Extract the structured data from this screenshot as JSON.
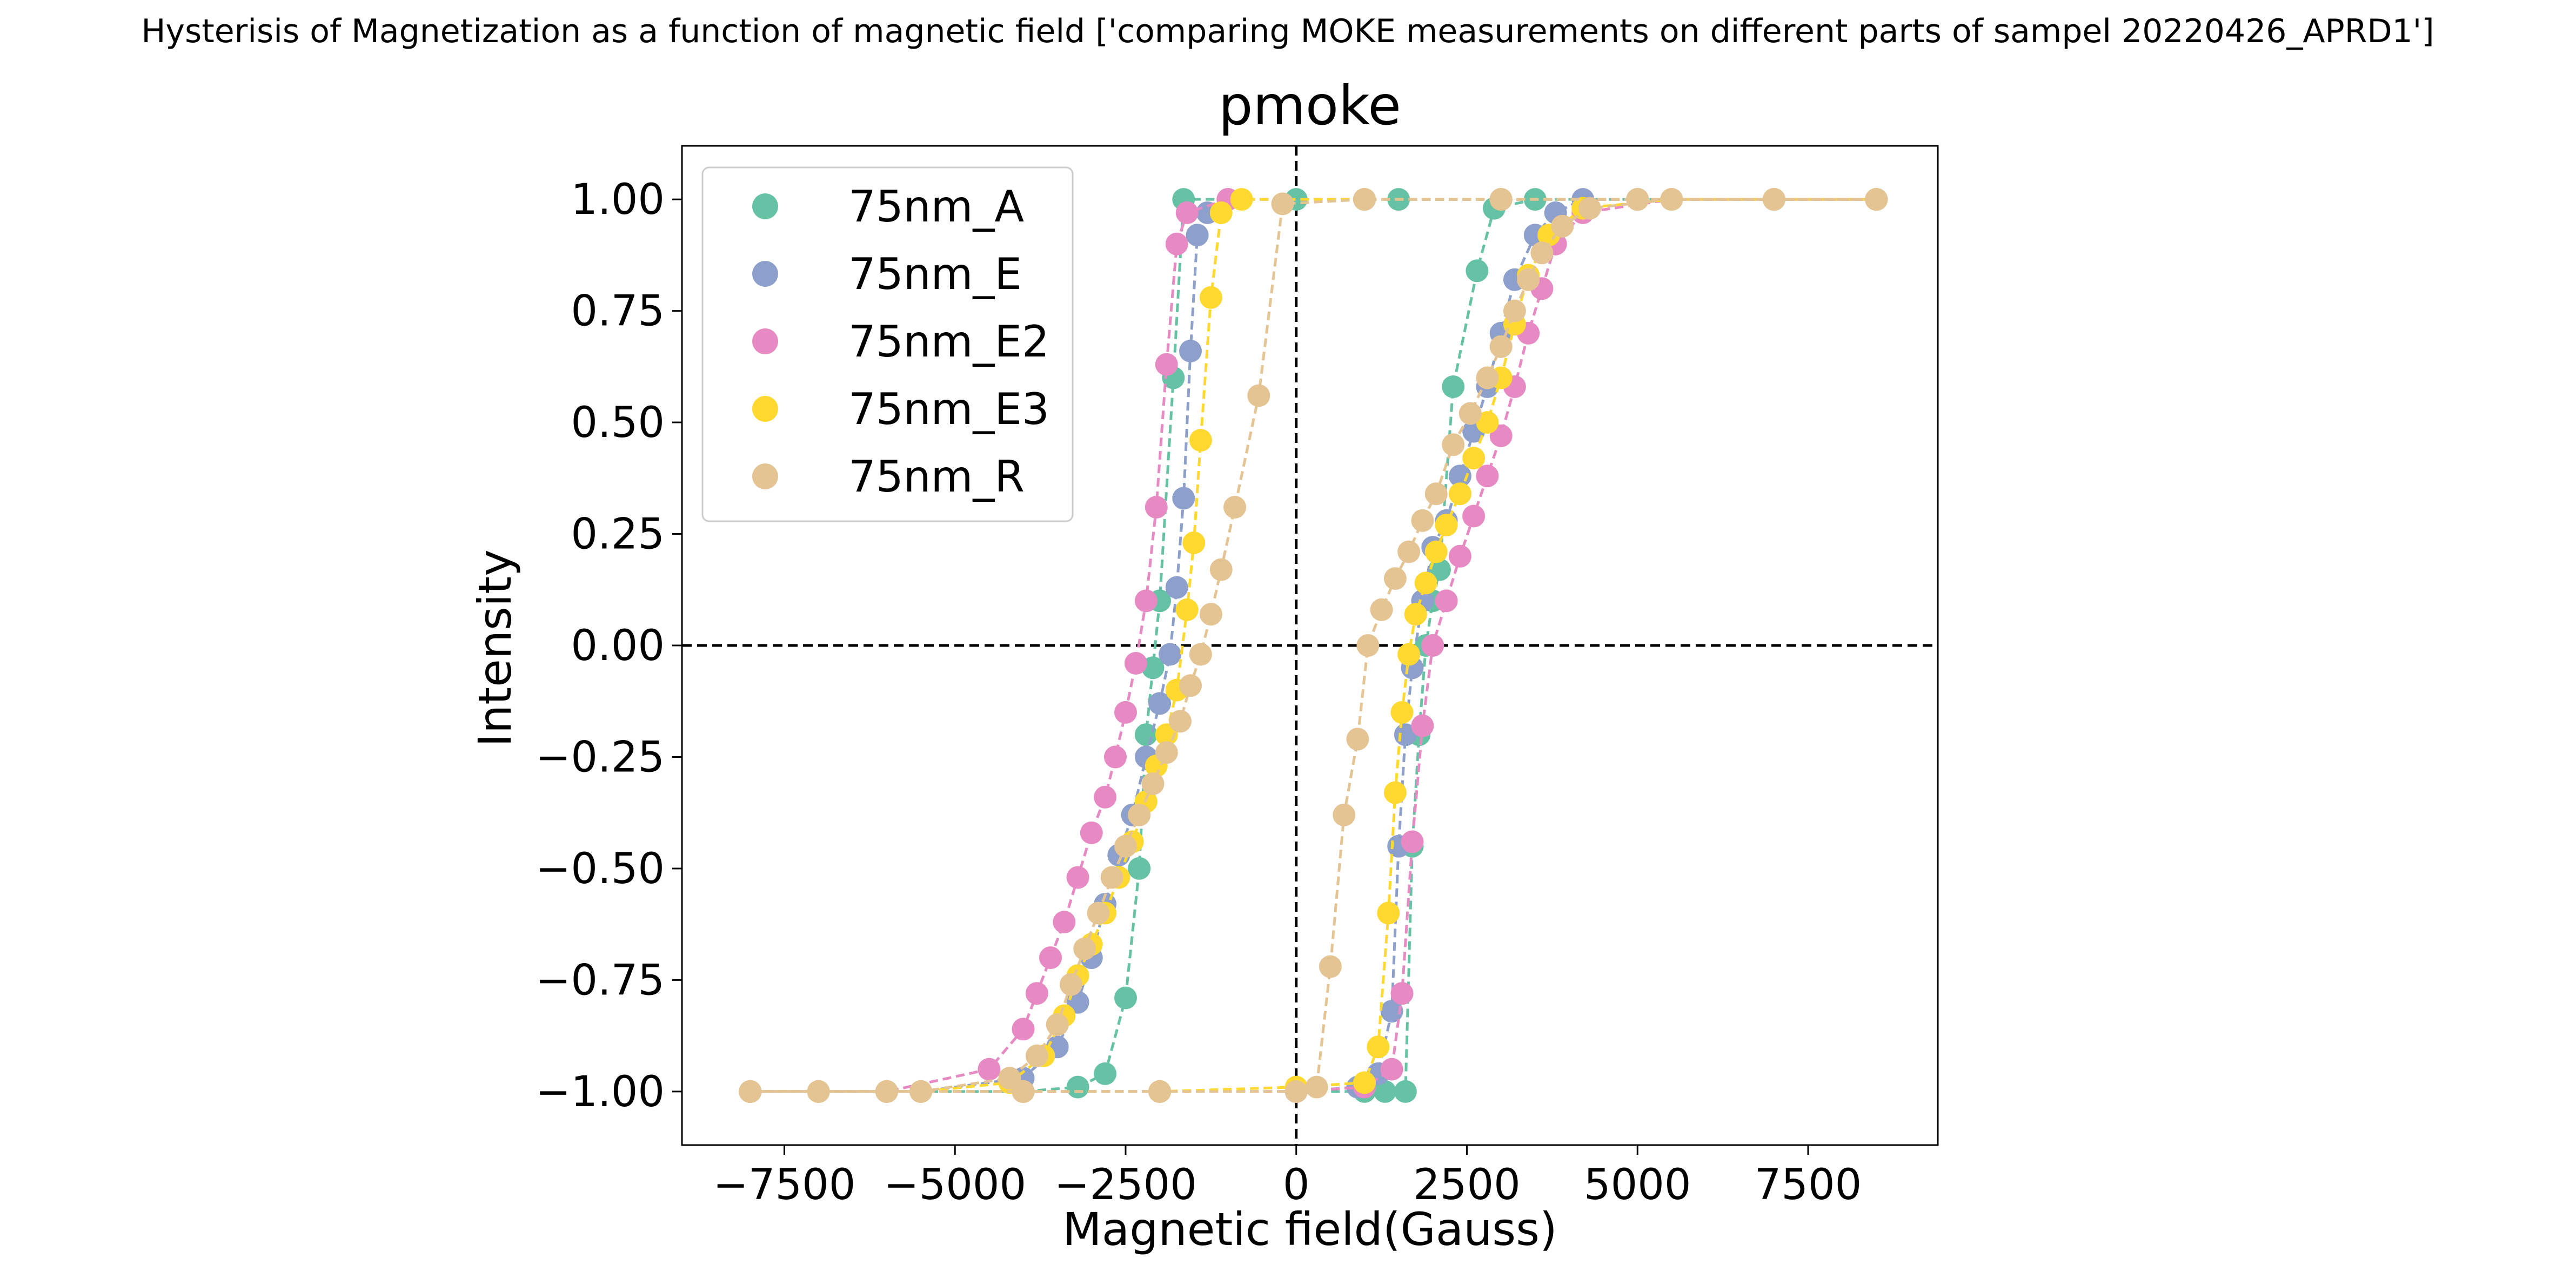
{
  "figure": {
    "suptitle": "Hysterisis of Magnetization as a function of magnetic field ['comparing MOKE measurements on different parts of sampel 20220426_APRD1']"
  },
  "chart_data": {
    "type": "scatter",
    "title": "pmoke",
    "xlabel": "Magnetic field(Gauss)",
    "ylabel": "Intensity",
    "xlim": [
      -9000,
      9400
    ],
    "ylim": [
      -1.12,
      1.12
    ],
    "xticks": [
      -7500,
      -5000,
      -2500,
      0,
      2500,
      5000,
      7500
    ],
    "xtick_labels": [
      "−7500",
      "−5000",
      "−2500",
      "0",
      "2500",
      "5000",
      "7500"
    ],
    "yticks": [
      1.0,
      0.75,
      0.5,
      0.25,
      0.0,
      -0.25,
      -0.5,
      -0.75,
      -1.0
    ],
    "ytick_labels": [
      "1.00",
      "0.75",
      "0.50",
      "0.25",
      "0.00",
      "−0.25",
      "−0.50",
      "−0.75",
      "−1.00"
    ],
    "reference_lines": {
      "x": 0,
      "y": 0,
      "style": "dashed"
    },
    "grid": false,
    "legend_position": "top-left",
    "marker": "circle",
    "line_style": "dashed",
    "series": [
      {
        "name": "75nm_A",
        "color": "#66c2a5",
        "descending": {
          "x": [
            8500,
            7000,
            5000,
            3000,
            1500,
            0,
            -1000,
            -1650,
            -1800,
            -2000,
            -2100,
            -2200,
            -2300,
            -2500,
            -2800,
            -3200,
            -4000,
            -5500,
            -7000,
            -8000
          ],
          "y": [
            1.0,
            1.0,
            1.0,
            1.0,
            1.0,
            1.0,
            1.0,
            1.0,
            0.6,
            0.1,
            -0.05,
            -0.2,
            -0.5,
            -0.79,
            -0.96,
            -0.99,
            -1.0,
            -1.0,
            -1.0,
            -1.0
          ]
        },
        "ascending": {
          "x": [
            -8000,
            -6000,
            -4000,
            -2000,
            0,
            1000,
            1300,
            1600,
            1700,
            1800,
            1900,
            2000,
            2100,
            2300,
            2650,
            2900,
            3500,
            5000,
            7000,
            8500
          ],
          "y": [
            -1.0,
            -1.0,
            -1.0,
            -1.0,
            -1.0,
            -1.0,
            -1.0,
            -1.0,
            -0.45,
            -0.2,
            0.0,
            0.1,
            0.17,
            0.58,
            0.84,
            0.98,
            1.0,
            1.0,
            1.0,
            1.0
          ]
        }
      },
      {
        "name": "75nm_E",
        "color": "#8da0cb",
        "descending": {
          "x": [
            8500,
            7000,
            5000,
            3000,
            1000,
            -1000,
            -1300,
            -1450,
            -1550,
            -1650,
            -1750,
            -1850,
            -2000,
            -2200,
            -2400,
            -2600,
            -2800,
            -3000,
            -3200,
            -3500,
            -4000,
            -5500,
            -7000,
            -8000
          ],
          "y": [
            1.0,
            1.0,
            1.0,
            1.0,
            1.0,
            1.0,
            0.97,
            0.92,
            0.66,
            0.33,
            0.13,
            -0.02,
            -0.13,
            -0.25,
            -0.38,
            -0.47,
            -0.58,
            -0.7,
            -0.8,
            -0.9,
            -0.97,
            -1.0,
            -1.0,
            -1.0
          ]
        },
        "ascending": {
          "x": [
            -8000,
            -6000,
            -4000,
            -2000,
            0,
            900,
            1200,
            1400,
            1500,
            1600,
            1700,
            1850,
            2000,
            2200,
            2400,
            2600,
            2800,
            3000,
            3200,
            3500,
            3800,
            4200,
            5500,
            7000,
            8500
          ],
          "y": [
            -1.0,
            -1.0,
            -1.0,
            -1.0,
            -1.0,
            -0.99,
            -0.96,
            -0.82,
            -0.45,
            -0.2,
            -0.05,
            0.1,
            0.22,
            0.28,
            0.38,
            0.48,
            0.58,
            0.7,
            0.82,
            0.92,
            0.97,
            1.0,
            1.0,
            1.0,
            1.0
          ]
        }
      },
      {
        "name": "75nm_E2",
        "color": "#e78ac3",
        "descending": {
          "x": [
            8500,
            7000,
            5000,
            3000,
            1000,
            -1000,
            -1600,
            -1750,
            -1900,
            -2050,
            -2200,
            -2350,
            -2500,
            -2650,
            -2800,
            -3000,
            -3200,
            -3400,
            -3600,
            -3800,
            -4000,
            -4500,
            -6000,
            -8000
          ],
          "y": [
            1.0,
            1.0,
            1.0,
            1.0,
            1.0,
            1.0,
            0.97,
            0.9,
            0.63,
            0.31,
            0.1,
            -0.04,
            -0.15,
            -0.25,
            -0.34,
            -0.42,
            -0.52,
            -0.62,
            -0.7,
            -0.78,
            -0.86,
            -0.95,
            -1.0,
            -1.0
          ]
        },
        "ascending": {
          "x": [
            -8000,
            -6000,
            -4000,
            -2000,
            0,
            1000,
            1400,
            1550,
            1700,
            1850,
            2000,
            2200,
            2400,
            2600,
            2800,
            3000,
            3200,
            3400,
            3600,
            3800,
            4200,
            5500,
            7000,
            8500
          ],
          "y": [
            -1.0,
            -1.0,
            -1.0,
            -1.0,
            -1.0,
            -0.99,
            -0.95,
            -0.78,
            -0.44,
            -0.18,
            0.0,
            0.1,
            0.2,
            0.29,
            0.38,
            0.47,
            0.58,
            0.7,
            0.8,
            0.9,
            0.97,
            1.0,
            1.0,
            1.0
          ]
        }
      },
      {
        "name": "75nm_E3",
        "color": "#ffd92f",
        "descending": {
          "x": [
            8500,
            7000,
            5000,
            3000,
            1000,
            -800,
            -1100,
            -1250,
            -1400,
            -1500,
            -1600,
            -1750,
            -1900,
            -2050,
            -2200,
            -2400,
            -2600,
            -2800,
            -3000,
            -3200,
            -3400,
            -3700,
            -4200,
            -5500,
            -7000,
            -8000
          ],
          "y": [
            1.0,
            1.0,
            1.0,
            1.0,
            1.0,
            1.0,
            0.97,
            0.78,
            0.46,
            0.23,
            0.08,
            -0.1,
            -0.2,
            -0.27,
            -0.35,
            -0.44,
            -0.52,
            -0.6,
            -0.67,
            -0.74,
            -0.83,
            -0.92,
            -0.98,
            -1.0,
            -1.0,
            -1.0
          ]
        },
        "ascending": {
          "x": [
            -8000,
            -6000,
            -4000,
            -2000,
            0,
            1000,
            1200,
            1350,
            1450,
            1550,
            1650,
            1750,
            1900,
            2050,
            2200,
            2400,
            2600,
            2800,
            3000,
            3200,
            3400,
            3700,
            4200,
            5500,
            7000,
            8500
          ],
          "y": [
            -1.0,
            -1.0,
            -1.0,
            -1.0,
            -0.99,
            -0.98,
            -0.9,
            -0.6,
            -0.33,
            -0.15,
            -0.02,
            0.07,
            0.14,
            0.21,
            0.27,
            0.34,
            0.42,
            0.5,
            0.6,
            0.72,
            0.83,
            0.92,
            0.98,
            1.0,
            1.0,
            1.0
          ]
        }
      },
      {
        "name": "75nm_R",
        "color": "#e5c494",
        "descending": {
          "x": [
            8500,
            7000,
            5000,
            3000,
            1000,
            -200,
            -550,
            -900,
            -1100,
            -1250,
            -1400,
            -1550,
            -1700,
            -1900,
            -2100,
            -2300,
            -2500,
            -2700,
            -2900,
            -3100,
            -3300,
            -3500,
            -3800,
            -4200,
            -5500,
            -7000,
            -8000
          ],
          "y": [
            1.0,
            1.0,
            1.0,
            1.0,
            1.0,
            0.99,
            0.56,
            0.31,
            0.17,
            0.07,
            -0.02,
            -0.09,
            -0.17,
            -0.24,
            -0.31,
            -0.38,
            -0.45,
            -0.52,
            -0.6,
            -0.68,
            -0.76,
            -0.85,
            -0.92,
            -0.97,
            -1.0,
            -1.0,
            -1.0
          ]
        },
        "ascending": {
          "x": [
            -8000,
            -6000,
            -4000,
            -2000,
            0,
            300,
            500,
            700,
            900,
            1050,
            1250,
            1450,
            1650,
            1850,
            2050,
            2300,
            2550,
            2800,
            3000,
            3200,
            3400,
            3600,
            3900,
            4300,
            5500,
            7000,
            8500
          ],
          "y": [
            -1.0,
            -1.0,
            -1.0,
            -1.0,
            -1.0,
            -0.99,
            -0.72,
            -0.38,
            -0.21,
            0.0,
            0.08,
            0.15,
            0.21,
            0.28,
            0.34,
            0.45,
            0.52,
            0.6,
            0.67,
            0.75,
            0.82,
            0.88,
            0.94,
            0.98,
            1.0,
            1.0,
            1.0
          ]
        }
      }
    ]
  }
}
